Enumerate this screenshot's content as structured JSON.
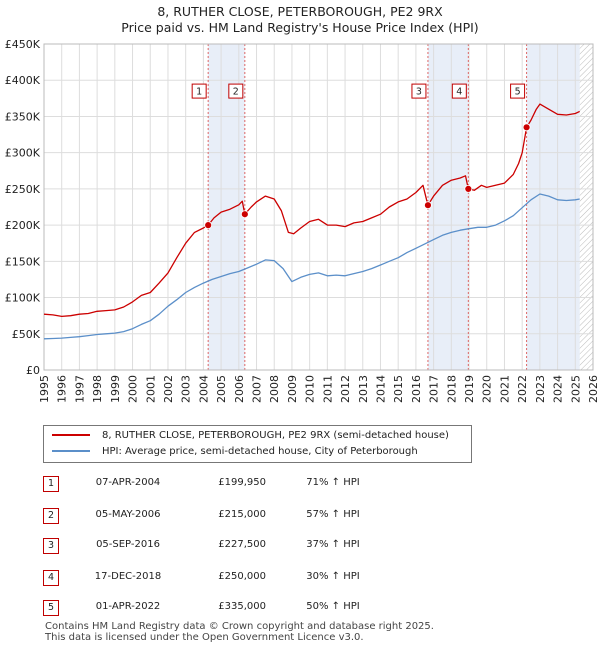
{
  "header": {
    "title_line1": "8, RUTHER CLOSE, PETERBOROUGH, PE2 9RX",
    "title_line2": "Price paid vs. HM Land Registry's House Price Index (HPI)"
  },
  "colors": {
    "price_line": "#cc0000",
    "hpi_line": "#5b8fc9",
    "shade": "#e8eef8",
    "grid": "#dddddd",
    "marker_border": "#c00000"
  },
  "legend": {
    "price_label": "8, RUTHER CLOSE, PETERBOROUGH, PE2 9RX (semi-detached house)",
    "hpi_label": "HPI: Average price, semi-detached house, City of Peterborough"
  },
  "transactions": [
    {
      "num": "1",
      "date": "07-APR-2004",
      "price": "£199,950",
      "hpi_change": "71% ↑ HPI"
    },
    {
      "num": "2",
      "date": "05-MAY-2006",
      "price": "£215,000",
      "hpi_change": "57% ↑ HPI"
    },
    {
      "num": "3",
      "date": "05-SEP-2016",
      "price": "£227,500",
      "hpi_change": "37% ↑ HPI"
    },
    {
      "num": "4",
      "date": "17-DEC-2018",
      "price": "£250,000",
      "hpi_change": "30% ↑ HPI"
    },
    {
      "num": "5",
      "date": "01-APR-2022",
      "price": "£335,000",
      "hpi_change": "50% ↑ HPI"
    }
  ],
  "footer": {
    "line1": "Contains HM Land Registry data © Crown copyright and database right 2025.",
    "line2": "This data is licensed under the Open Government Licence v3.0."
  },
  "chart_data": {
    "type": "line",
    "title": "8, RUTHER CLOSE, PETERBOROUGH, PE2 9RX",
    "subtitle": "Price paid vs. HM Land Registry's House Price Index (HPI)",
    "xlabel": "",
    "ylabel": "",
    "xlim": [
      1995,
      2026
    ],
    "ylim": [
      0,
      450000
    ],
    "x_ticks": [
      1995,
      1996,
      1997,
      1998,
      1999,
      2000,
      2001,
      2002,
      2003,
      2004,
      2005,
      2006,
      2007,
      2008,
      2009,
      2010,
      2011,
      2012,
      2013,
      2014,
      2015,
      2016,
      2017,
      2018,
      2019,
      2020,
      2021,
      2022,
      2023,
      2024,
      2025,
      2026
    ],
    "y_ticks": [
      0,
      50000,
      100000,
      150000,
      200000,
      250000,
      300000,
      350000,
      400000,
      450000
    ],
    "y_tick_labels": [
      "£0",
      "£50K",
      "£100K",
      "£150K",
      "£200K",
      "£250K",
      "£300K",
      "£350K",
      "£400K",
      "£450K"
    ],
    "grid": true,
    "shaded_periods": [
      [
        2004.27,
        2006.34
      ],
      [
        2016.68,
        2018.96
      ],
      [
        2022.25,
        2025.25
      ]
    ],
    "hatched_after": 2025.25,
    "sale_markers": [
      {
        "label": "1",
        "x": 2004.27,
        "y": 199950,
        "label_y": 385000
      },
      {
        "label": "2",
        "x": 2006.34,
        "y": 215000,
        "label_y": 385000
      },
      {
        "label": "3",
        "x": 2016.68,
        "y": 227500,
        "label_y": 385000
      },
      {
        "label": "4",
        "x": 2018.96,
        "y": 250000,
        "label_y": 385000
      },
      {
        "label": "5",
        "x": 2022.25,
        "y": 335000,
        "label_y": 385000
      }
    ],
    "series": [
      {
        "name": "8, RUTHER CLOSE, PETERBOROUGH, PE2 9RX (semi-detached house)",
        "x": [
          1995.0,
          1995.5,
          1996.0,
          1996.5,
          1997.0,
          1997.5,
          1998.0,
          1998.5,
          1999.0,
          1999.5,
          2000.0,
          2000.5,
          2001.0,
          2001.5,
          2002.0,
          2002.5,
          2003.0,
          2003.5,
          2004.0,
          2004.27,
          2004.6,
          2005.0,
          2005.5,
          2006.0,
          2006.2,
          2006.34,
          2006.7,
          2007.0,
          2007.5,
          2008.0,
          2008.4,
          2008.8,
          2009.1,
          2009.5,
          2010.0,
          2010.5,
          2011.0,
          2011.5,
          2012.0,
          2012.5,
          2013.0,
          2013.5,
          2014.0,
          2014.5,
          2015.0,
          2015.5,
          2016.0,
          2016.4,
          2016.68,
          2017.0,
          2017.5,
          2018.0,
          2018.5,
          2018.8,
          2018.96,
          2019.3,
          2019.7,
          2020.0,
          2020.5,
          2021.0,
          2021.5,
          2021.8,
          2022.0,
          2022.25,
          2022.5,
          2022.8,
          2023.0,
          2023.5,
          2024.0,
          2024.5,
          2025.0,
          2025.25
        ],
        "values": [
          77000,
          76000,
          74000,
          75000,
          77000,
          78000,
          81000,
          82000,
          83000,
          87000,
          94000,
          103000,
          107000,
          120000,
          134000,
          155000,
          175000,
          190000,
          196000,
          199950,
          210000,
          218000,
          222000,
          228000,
          233000,
          215000,
          225000,
          232000,
          240000,
          236000,
          220000,
          190000,
          188000,
          196000,
          205000,
          208000,
          200000,
          200000,
          198000,
          203000,
          205000,
          210000,
          215000,
          225000,
          232000,
          236000,
          245000,
          255000,
          227500,
          240000,
          255000,
          262000,
          265000,
          268000,
          250000,
          248000,
          255000,
          252000,
          255000,
          258000,
          270000,
          285000,
          300000,
          335000,
          345000,
          360000,
          367000,
          360000,
          353000,
          352000,
          354000,
          357000
        ]
      },
      {
        "name": "HPI: Average price, semi-detached house, City of Peterborough",
        "x": [
          1995.0,
          1995.5,
          1996.0,
          1996.5,
          1997.0,
          1997.5,
          1998.0,
          1998.5,
          1999.0,
          1999.5,
          2000.0,
          2000.5,
          2001.0,
          2001.5,
          2002.0,
          2002.5,
          2003.0,
          2003.5,
          2004.0,
          2004.5,
          2005.0,
          2005.5,
          2006.0,
          2006.5,
          2007.0,
          2007.5,
          2008.0,
          2008.5,
          2009.0,
          2009.5,
          2010.0,
          2010.5,
          2011.0,
          2011.5,
          2012.0,
          2012.5,
          2013.0,
          2013.5,
          2014.0,
          2014.5,
          2015.0,
          2015.5,
          2016.0,
          2016.5,
          2017.0,
          2017.5,
          2018.0,
          2018.5,
          2019.0,
          2019.5,
          2020.0,
          2020.5,
          2021.0,
          2021.5,
          2022.0,
          2022.5,
          2023.0,
          2023.5,
          2024.0,
          2024.5,
          2025.0,
          2025.25
        ],
        "values": [
          43000,
          43500,
          44000,
          45000,
          46000,
          47500,
          49000,
          50000,
          51000,
          53000,
          57000,
          63000,
          68000,
          77000,
          88000,
          97000,
          107000,
          114000,
          120000,
          125000,
          129000,
          133000,
          136000,
          141000,
          146000,
          152000,
          151000,
          140000,
          122000,
          128000,
          132000,
          134000,
          130000,
          131000,
          130000,
          133000,
          136000,
          140000,
          145000,
          150000,
          155000,
          162000,
          168000,
          174000,
          180000,
          186000,
          190000,
          193000,
          195000,
          197000,
          197000,
          200000,
          206000,
          213000,
          224000,
          235000,
          243000,
          240000,
          235000,
          234000,
          235000,
          236000
        ]
      }
    ]
  }
}
